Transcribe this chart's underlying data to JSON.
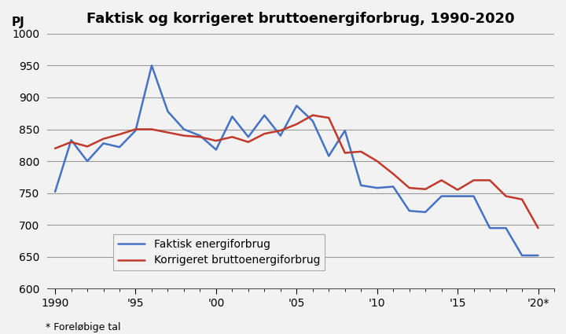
{
  "title": "Faktisk og korrigeret bruttoenergiforbrug, 1990-2020",
  "ylabel": "PJ",
  "footnote": "* Foreløbige tal",
  "years": [
    1990,
    1991,
    1992,
    1993,
    1994,
    1995,
    1996,
    1997,
    1998,
    1999,
    2000,
    2001,
    2002,
    2003,
    2004,
    2005,
    2006,
    2007,
    2008,
    2009,
    2010,
    2011,
    2012,
    2013,
    2014,
    2015,
    2016,
    2017,
    2018,
    2019,
    2020
  ],
  "faktisk": [
    752,
    833,
    800,
    828,
    822,
    848,
    950,
    878,
    850,
    840,
    818,
    870,
    838,
    872,
    840,
    887,
    863,
    808,
    848,
    762,
    758,
    760,
    722,
    720,
    745,
    745,
    745,
    695,
    695,
    652,
    652
  ],
  "korrigeret": [
    820,
    830,
    823,
    835,
    842,
    850,
    850,
    845,
    840,
    838,
    832,
    838,
    830,
    843,
    848,
    858,
    872,
    868,
    813,
    815,
    800,
    780,
    758,
    756,
    770,
    755,
    770,
    770,
    745,
    740,
    695
  ],
  "faktisk_color": "#4472C4",
  "korrigeret_color": "#C0392B",
  "ylim": [
    600,
    1000
  ],
  "yticks": [
    600,
    650,
    700,
    750,
    800,
    850,
    900,
    950,
    1000
  ],
  "xtick_labels": [
    "1990",
    "'95",
    "'00",
    "'05",
    "'10",
    "'15",
    "'20*"
  ],
  "xtick_positions": [
    1990,
    1995,
    2000,
    2005,
    2010,
    2015,
    2020
  ],
  "legend_label1": "Faktisk energiforbrug",
  "legend_label2": "Korrigeret bruttoenergiforbrug",
  "background_color": "#f0f0f0",
  "grid_color": "#999999",
  "title_fontsize": 13,
  "axis_fontsize": 10,
  "legend_fontsize": 10
}
